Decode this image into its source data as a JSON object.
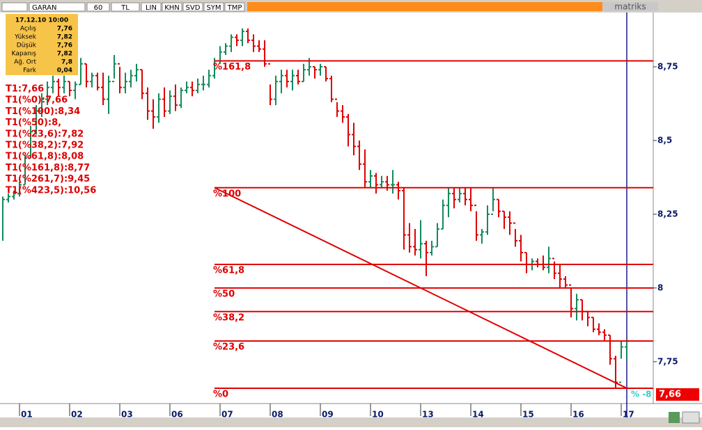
{
  "toolbar": {
    "symbol": "GARAN",
    "period": "60",
    "currency": "TL",
    "buttons": [
      "LIN",
      "KHN",
      "SVD",
      "SYM",
      "TMP"
    ],
    "brand": "matriks"
  },
  "info_box": {
    "datetime": "17.12.10 10:00",
    "rows": [
      [
        "Açılış",
        "7,76"
      ],
      [
        "Yüksek",
        "7,82"
      ],
      [
        "Düşük",
        "7,76"
      ],
      [
        "Kapanış",
        "7,82"
      ],
      [
        "Ağ. Ort",
        "7,8"
      ],
      [
        "Fark",
        "0,04"
      ]
    ]
  },
  "chart_data": {
    "type": "ohlc",
    "categories": [
      null,
      null,
      null,
      "01",
      null,
      null,
      null,
      null,
      null,
      null,
      null,
      null,
      "02",
      null,
      null,
      null,
      null,
      null,
      null,
      null,
      null,
      "03",
      null,
      null,
      null,
      null,
      null,
      null,
      null,
      null,
      "06",
      null,
      null,
      null,
      null,
      null,
      null,
      null,
      null,
      "07",
      null,
      null,
      null,
      null,
      null,
      null,
      null,
      null,
      "08",
      null,
      null,
      null,
      null,
      null,
      null,
      null,
      null,
      "09",
      null,
      null,
      null,
      null,
      null,
      null,
      null,
      null,
      "10",
      null,
      null,
      null,
      null,
      null,
      null,
      null,
      null,
      "13",
      null,
      null,
      null,
      null,
      null,
      null,
      null,
      null,
      "14",
      null,
      null,
      null,
      null,
      null,
      null,
      null,
      null,
      "15",
      null,
      null,
      null,
      null,
      null,
      null,
      null,
      null,
      "16",
      null,
      null,
      null,
      null,
      null,
      null,
      null,
      null,
      "17",
      null
    ],
    "high": [
      8.31,
      8.32,
      8.33,
      8.36,
      8.45,
      8.55,
      8.62,
      8.66,
      8.7,
      8.72,
      8.71,
      8.72,
      8.7,
      8.7,
      8.78,
      8.76,
      8.73,
      8.73,
      8.73,
      8.72,
      8.79,
      8.75,
      8.73,
      8.74,
      8.76,
      8.74,
      8.68,
      8.64,
      8.66,
      8.68,
      8.67,
      8.69,
      8.68,
      8.7,
      8.7,
      8.71,
      8.72,
      8.74,
      8.78,
      8.82,
      8.83,
      8.86,
      8.86,
      8.88,
      8.88,
      8.86,
      8.84,
      8.84,
      8.69,
      8.72,
      8.74,
      8.74,
      8.74,
      8.74,
      8.76,
      8.78,
      8.75,
      8.76,
      8.75,
      8.72,
      8.63,
      8.62,
      8.59,
      8.56,
      8.5,
      8.47,
      8.4,
      8.39,
      8.38,
      8.38,
      8.4,
      8.36,
      8.34,
      8.22,
      8.2,
      8.23,
      8.16,
      8.16,
      8.22,
      8.3,
      8.34,
      8.34,
      8.34,
      8.34,
      8.34,
      8.26,
      8.2,
      8.28,
      8.34,
      8.3,
      8.26,
      8.26,
      8.2,
      8.18,
      8.12,
      8.1,
      8.1,
      8.11,
      8.14,
      8.09,
      8.08,
      8.04,
      8.0,
      7.98,
      7.96,
      7.92,
      7.9,
      7.88,
      7.86,
      7.84,
      7.77,
      7.82,
      7.82
    ],
    "low": [
      8.16,
      8.29,
      8.3,
      8.31,
      8.35,
      8.44,
      8.52,
      8.58,
      8.62,
      8.66,
      8.65,
      8.66,
      8.65,
      8.64,
      8.69,
      8.68,
      8.68,
      8.67,
      8.62,
      8.59,
      8.71,
      8.66,
      8.66,
      8.68,
      8.7,
      8.64,
      8.57,
      8.54,
      8.56,
      8.58,
      8.59,
      8.6,
      8.61,
      8.66,
      8.65,
      8.66,
      8.67,
      8.68,
      8.71,
      8.76,
      8.79,
      8.8,
      8.82,
      8.82,
      8.83,
      8.8,
      8.8,
      8.75,
      8.62,
      8.62,
      8.66,
      8.68,
      8.67,
      8.69,
      8.7,
      8.72,
      8.71,
      8.72,
      8.7,
      8.63,
      8.58,
      8.56,
      8.48,
      8.45,
      8.4,
      8.34,
      8.34,
      8.32,
      8.34,
      8.33,
      8.32,
      8.3,
      8.13,
      8.12,
      8.11,
      8.1,
      8.04,
      8.11,
      8.14,
      8.2,
      8.24,
      8.27,
      8.29,
      8.28,
      8.26,
      8.16,
      8.15,
      8.18,
      8.26,
      8.24,
      8.2,
      8.18,
      8.14,
      8.09,
      8.05,
      8.06,
      8.07,
      8.06,
      8.05,
      8.03,
      8.0,
      8.0,
      7.9,
      7.89,
      7.89,
      7.87,
      7.85,
      7.84,
      7.82,
      7.74,
      7.66,
      7.76,
      7.76
    ],
    "close": [
      8.3,
      8.31,
      8.32,
      8.35,
      8.44,
      8.53,
      8.6,
      8.64,
      8.68,
      8.7,
      8.68,
      8.7,
      8.67,
      8.69,
      8.76,
      8.7,
      8.72,
      8.68,
      8.64,
      8.7,
      8.76,
      8.68,
      8.7,
      8.72,
      8.74,
      8.66,
      8.6,
      8.58,
      8.64,
      8.6,
      8.65,
      8.62,
      8.67,
      8.68,
      8.67,
      8.69,
      8.69,
      8.72,
      8.77,
      8.8,
      8.82,
      8.85,
      8.84,
      8.87,
      8.84,
      8.82,
      8.81,
      8.76,
      8.64,
      8.7,
      8.72,
      8.7,
      8.72,
      8.7,
      8.74,
      8.75,
      8.74,
      8.75,
      8.71,
      8.64,
      8.6,
      8.58,
      8.52,
      8.48,
      8.42,
      8.36,
      8.38,
      8.35,
      8.36,
      8.35,
      8.35,
      8.33,
      8.18,
      8.14,
      8.13,
      8.15,
      8.12,
      8.14,
      8.2,
      8.28,
      8.32,
      8.3,
      8.32,
      8.3,
      8.28,
      8.18,
      8.19,
      8.25,
      8.3,
      8.26,
      8.24,
      8.22,
      8.16,
      8.12,
      8.08,
      8.09,
      8.08,
      8.07,
      8.1,
      8.05,
      8.03,
      8.01,
      7.93,
      7.96,
      7.92,
      7.9,
      7.86,
      7.85,
      7.84,
      7.76,
      7.68,
      7.8,
      7.82
    ],
    "up_color": "#138a5c",
    "down_color": "#dd0000",
    "ylim": [
      7.608,
      8.934
    ],
    "yticks": [
      {
        "value": 8.75,
        "label": "8,75"
      },
      {
        "value": 8.5,
        "label": "8,5"
      },
      {
        "value": 8.25,
        "label": "8,25"
      },
      8,
      {
        "value": 7.75,
        "label": "7,75"
      }
    ],
    "fib_color": "#e00000",
    "fib_start_index": 38,
    "fib_end_index": 112,
    "fib_levels": [
      {
        "label": "%161,8",
        "value": 8.77
      },
      {
        "label": "%100",
        "value": 8.34
      },
      {
        "label": "%61,8",
        "value": 8.08
      },
      {
        "label": "%50",
        "value": 8.0
      },
      {
        "label": "%38,2",
        "value": 7.92
      },
      {
        "label": "%23,6",
        "value": 7.82
      },
      {
        "label": "%0",
        "value": 7.66
      }
    ],
    "annotations": [
      "T1:7,66",
      "T1(%0):7,66",
      "T1(%100):8,34",
      "T1(%50):8,",
      "T1(%23,6):7,82",
      "T1(%38,2):7,92",
      "T1(%61,8):8,08",
      "T1(%161,8):8,77",
      "T1(%261,7):9,45",
      "T1(%423,5):10,56"
    ],
    "cursor_index": 112,
    "last_price": {
      "value": 7.66,
      "label": "7,66"
    },
    "cursor_text": "% -8"
  }
}
